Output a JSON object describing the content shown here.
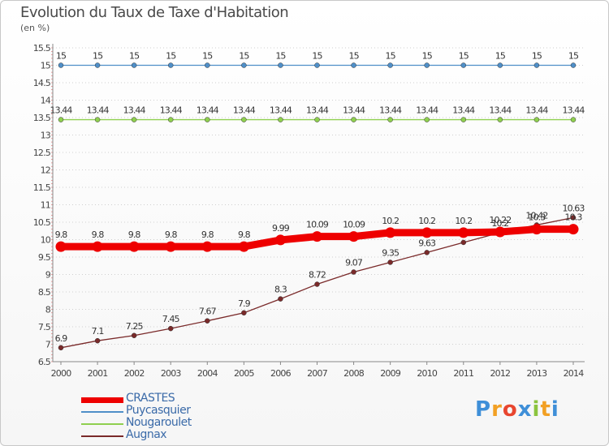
{
  "chart_data": {
    "type": "line",
    "title": "Evolution du Taux de Taxe d'Habitation",
    "subtitle": "(en %)",
    "xlabel": "",
    "ylabel": "",
    "x": [
      "2000",
      "2001",
      "2002",
      "2003",
      "2004",
      "2005",
      "2006",
      "2007",
      "2008",
      "2009",
      "2010",
      "2011",
      "2012",
      "2013",
      "2014"
    ],
    "ylim": [
      6.5,
      15.5
    ],
    "yticks": [
      "6.5",
      "7",
      "7.5",
      "8",
      "8.5",
      "9",
      "9.5",
      "10",
      "10.5",
      "11",
      "11.5",
      "12",
      "12.5",
      "13",
      "13.5",
      "14",
      "14.5",
      "15",
      "15.5"
    ],
    "grid": "horizontal dotted",
    "legend_position": "bottom-left",
    "series": [
      {
        "name": "CRASTES",
        "color": "#ee0000",
        "values": [
          9.8,
          9.8,
          9.8,
          9.8,
          9.8,
          9.8,
          9.99,
          10.09,
          10.09,
          10.2,
          10.2,
          10.2,
          10.22,
          10.3,
          10.3
        ],
        "labels": [
          "9.8",
          "9.8",
          "9.8",
          "9.8",
          "9.8",
          "9.8",
          "9.99",
          "10.09",
          "10.09",
          "10.2",
          "10.2",
          "10.2",
          "10.22",
          "10.3",
          "10.3"
        ]
      },
      {
        "name": "Puycasquier",
        "color": "#4f8fc8",
        "values": [
          15,
          15,
          15,
          15,
          15,
          15,
          15,
          15,
          15,
          15,
          15,
          15,
          15,
          15,
          15
        ],
        "labels": [
          "15",
          "15",
          "15",
          "15",
          "15",
          "15",
          "15",
          "15",
          "15",
          "15",
          "15",
          "15",
          "15",
          "15",
          "15"
        ]
      },
      {
        "name": "Nougaroulet",
        "color": "#8fcf4f",
        "values": [
          13.44,
          13.44,
          13.44,
          13.44,
          13.44,
          13.44,
          13.44,
          13.44,
          13.44,
          13.44,
          13.44,
          13.44,
          13.44,
          13.44,
          13.44
        ],
        "labels": [
          "13.44",
          "13.44",
          "13.44",
          "13.44",
          "13.44",
          "13.44",
          "13.44",
          "13.44",
          "13.44",
          "13.44",
          "13.44",
          "13.44",
          "13.44",
          "13.44",
          "13.44"
        ]
      },
      {
        "name": "Augnax",
        "color": "#7a2a2a",
        "values": [
          6.9,
          7.1,
          7.25,
          7.45,
          7.67,
          7.9,
          8.3,
          8.72,
          9.07,
          9.35,
          9.63,
          9.92,
          10.2,
          10.42,
          10.63
        ],
        "labels": [
          "6.9",
          "7.1",
          "7.25",
          "7.45",
          "7.67",
          "7.9",
          "8.3",
          "8.72",
          "9.07",
          "9.35",
          "9.63",
          "9.92",
          "10.2",
          "10.42",
          "10.63"
        ]
      }
    ]
  },
  "logo": {
    "text": "Proxiti",
    "letters": [
      "P",
      "r",
      "o",
      "x",
      "i",
      "t",
      "i"
    ],
    "colors": [
      "#3f8fd8",
      "#f2a024",
      "#e8462f",
      "#3f8fd8",
      "#8bc43f",
      "#f2a024",
      "#3f8fd8"
    ]
  }
}
